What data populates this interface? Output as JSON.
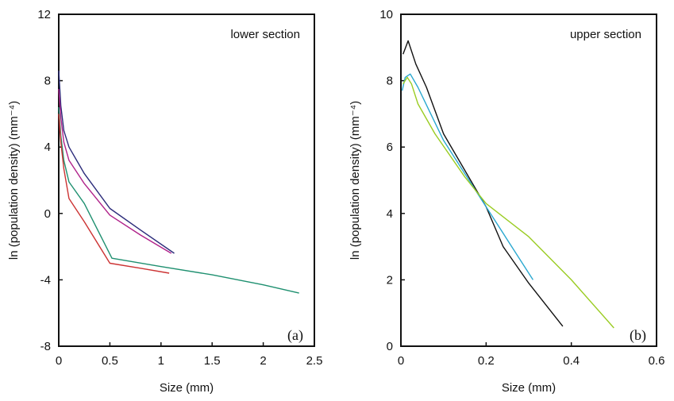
{
  "chart_data": [
    {
      "type": "line",
      "panel_label": "(a)",
      "annotation": "lower section",
      "xlabel": "Size (mm)",
      "ylabel": "ln (population density) (mm⁻⁴)",
      "xlim": [
        0,
        2.5
      ],
      "ylim": [
        -8,
        12
      ],
      "xticks": [
        0,
        0.5,
        1,
        1.5,
        2,
        2.5
      ],
      "xtick_labels": [
        "0",
        "0.5",
        "1",
        "1.5",
        "2",
        "2.5"
      ],
      "yticks": [
        -8,
        -4,
        0,
        4,
        8,
        12
      ],
      "ytick_labels": [
        "-8",
        "-4",
        "0",
        "4",
        "8",
        "12"
      ],
      "grid": false,
      "series": [
        {
          "color": "#2b2b7a",
          "x": [
            0.0,
            0.02,
            0.05,
            0.1,
            0.25,
            0.5,
            0.8,
            1.13
          ],
          "y": [
            8.6,
            6.5,
            5.0,
            4.0,
            2.4,
            0.3,
            -1.0,
            -2.4
          ]
        },
        {
          "color": "#b0228a",
          "x": [
            0.0,
            0.02,
            0.05,
            0.1,
            0.25,
            0.5,
            0.8,
            1.1
          ],
          "y": [
            7.5,
            5.8,
            4.3,
            3.2,
            1.8,
            -0.1,
            -1.3,
            -2.4
          ]
        },
        {
          "color": "#1f9070",
          "x": [
            0.0,
            0.02,
            0.05,
            0.1,
            0.25,
            0.52,
            1.0,
            1.5,
            2.0,
            2.35
          ],
          "y": [
            6.4,
            4.7,
            3.2,
            1.9,
            0.6,
            -2.7,
            -3.2,
            -3.7,
            -4.3,
            -4.8
          ]
        },
        {
          "color": "#cc3333",
          "x": [
            0.0,
            0.02,
            0.05,
            0.1,
            0.25,
            0.5,
            0.8,
            1.08
          ],
          "y": [
            6.0,
            4.3,
            2.7,
            0.9,
            -0.5,
            -3.0,
            -3.3,
            -3.6
          ]
        }
      ]
    },
    {
      "type": "line",
      "panel_label": "(b)",
      "annotation": "upper section",
      "xlabel": "Size (mm)",
      "ylabel": "ln (population density) (mm⁻⁴)",
      "xlim": [
        0,
        0.6
      ],
      "ylim": [
        0,
        10
      ],
      "xticks": [
        0,
        0.2,
        0.4,
        0.6
      ],
      "xtick_labels": [
        "0",
        "0.2",
        "0.4",
        "0.6"
      ],
      "yticks": [
        0,
        2,
        4,
        6,
        8,
        10
      ],
      "ytick_labels": [
        "0",
        "2",
        "4",
        "6",
        "8",
        "10"
      ],
      "grid": false,
      "series": [
        {
          "color": "#111111",
          "x": [
            0.005,
            0.017,
            0.035,
            0.06,
            0.1,
            0.15,
            0.2,
            0.24,
            0.3,
            0.38
          ],
          "y": [
            8.8,
            9.2,
            8.5,
            7.8,
            6.4,
            5.3,
            4.2,
            3.0,
            1.9,
            0.6
          ]
        },
        {
          "color": "#2aa8d0",
          "x": [
            0.003,
            0.01,
            0.022,
            0.04,
            0.07,
            0.1,
            0.15,
            0.2,
            0.25,
            0.31
          ],
          "y": [
            7.7,
            8.1,
            8.2,
            7.8,
            7.0,
            6.2,
            5.2,
            4.2,
            3.2,
            2.0
          ]
        },
        {
          "color": "#9acc22",
          "x": [
            0.005,
            0.015,
            0.025,
            0.04,
            0.08,
            0.15,
            0.2,
            0.3,
            0.4,
            0.5
          ],
          "y": [
            7.9,
            8.1,
            7.9,
            7.3,
            6.4,
            5.1,
            4.3,
            3.3,
            2.0,
            0.55
          ]
        }
      ]
    }
  ]
}
